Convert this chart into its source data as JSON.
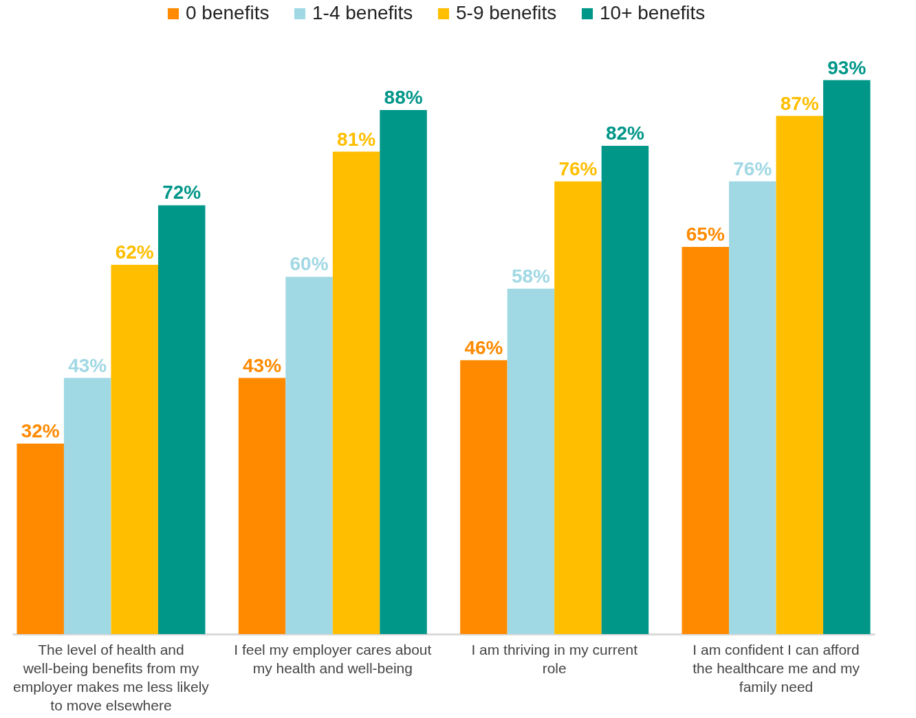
{
  "chart_data": {
    "type": "bar",
    "categories": [
      "The level of health and well-being benefits from my employer makes me less likely to move elsewhere",
      "I feel my employer cares about my health and well-being",
      "I am thriving in my current role",
      "I am confident I can afford the healthcare me and my family need"
    ],
    "series": [
      {
        "name": "0 benefits",
        "color": "#ff8a00",
        "values": [
          32,
          43,
          46,
          65
        ],
        "value_labels": [
          "32%",
          "43%",
          "46%",
          "65%"
        ]
      },
      {
        "name": "1-4 benefits",
        "color": "#a0d8e4",
        "values": [
          43,
          60,
          58,
          76
        ],
        "value_labels": [
          "43%",
          "60%",
          "58%",
          "76%"
        ]
      },
      {
        "name": "5-9 benefits",
        "color": "#ffbe00",
        "values": [
          62,
          81,
          76,
          87
        ],
        "value_labels": [
          "62%",
          "81%",
          "76%",
          "87%"
        ]
      },
      {
        "name": "10+ benefits",
        "color": "#009688",
        "values": [
          72,
          88,
          82,
          93
        ],
        "value_labels": [
          "72%",
          "88%",
          "82%",
          "93%"
        ]
      }
    ],
    "legend": "top",
    "grid": false
  }
}
